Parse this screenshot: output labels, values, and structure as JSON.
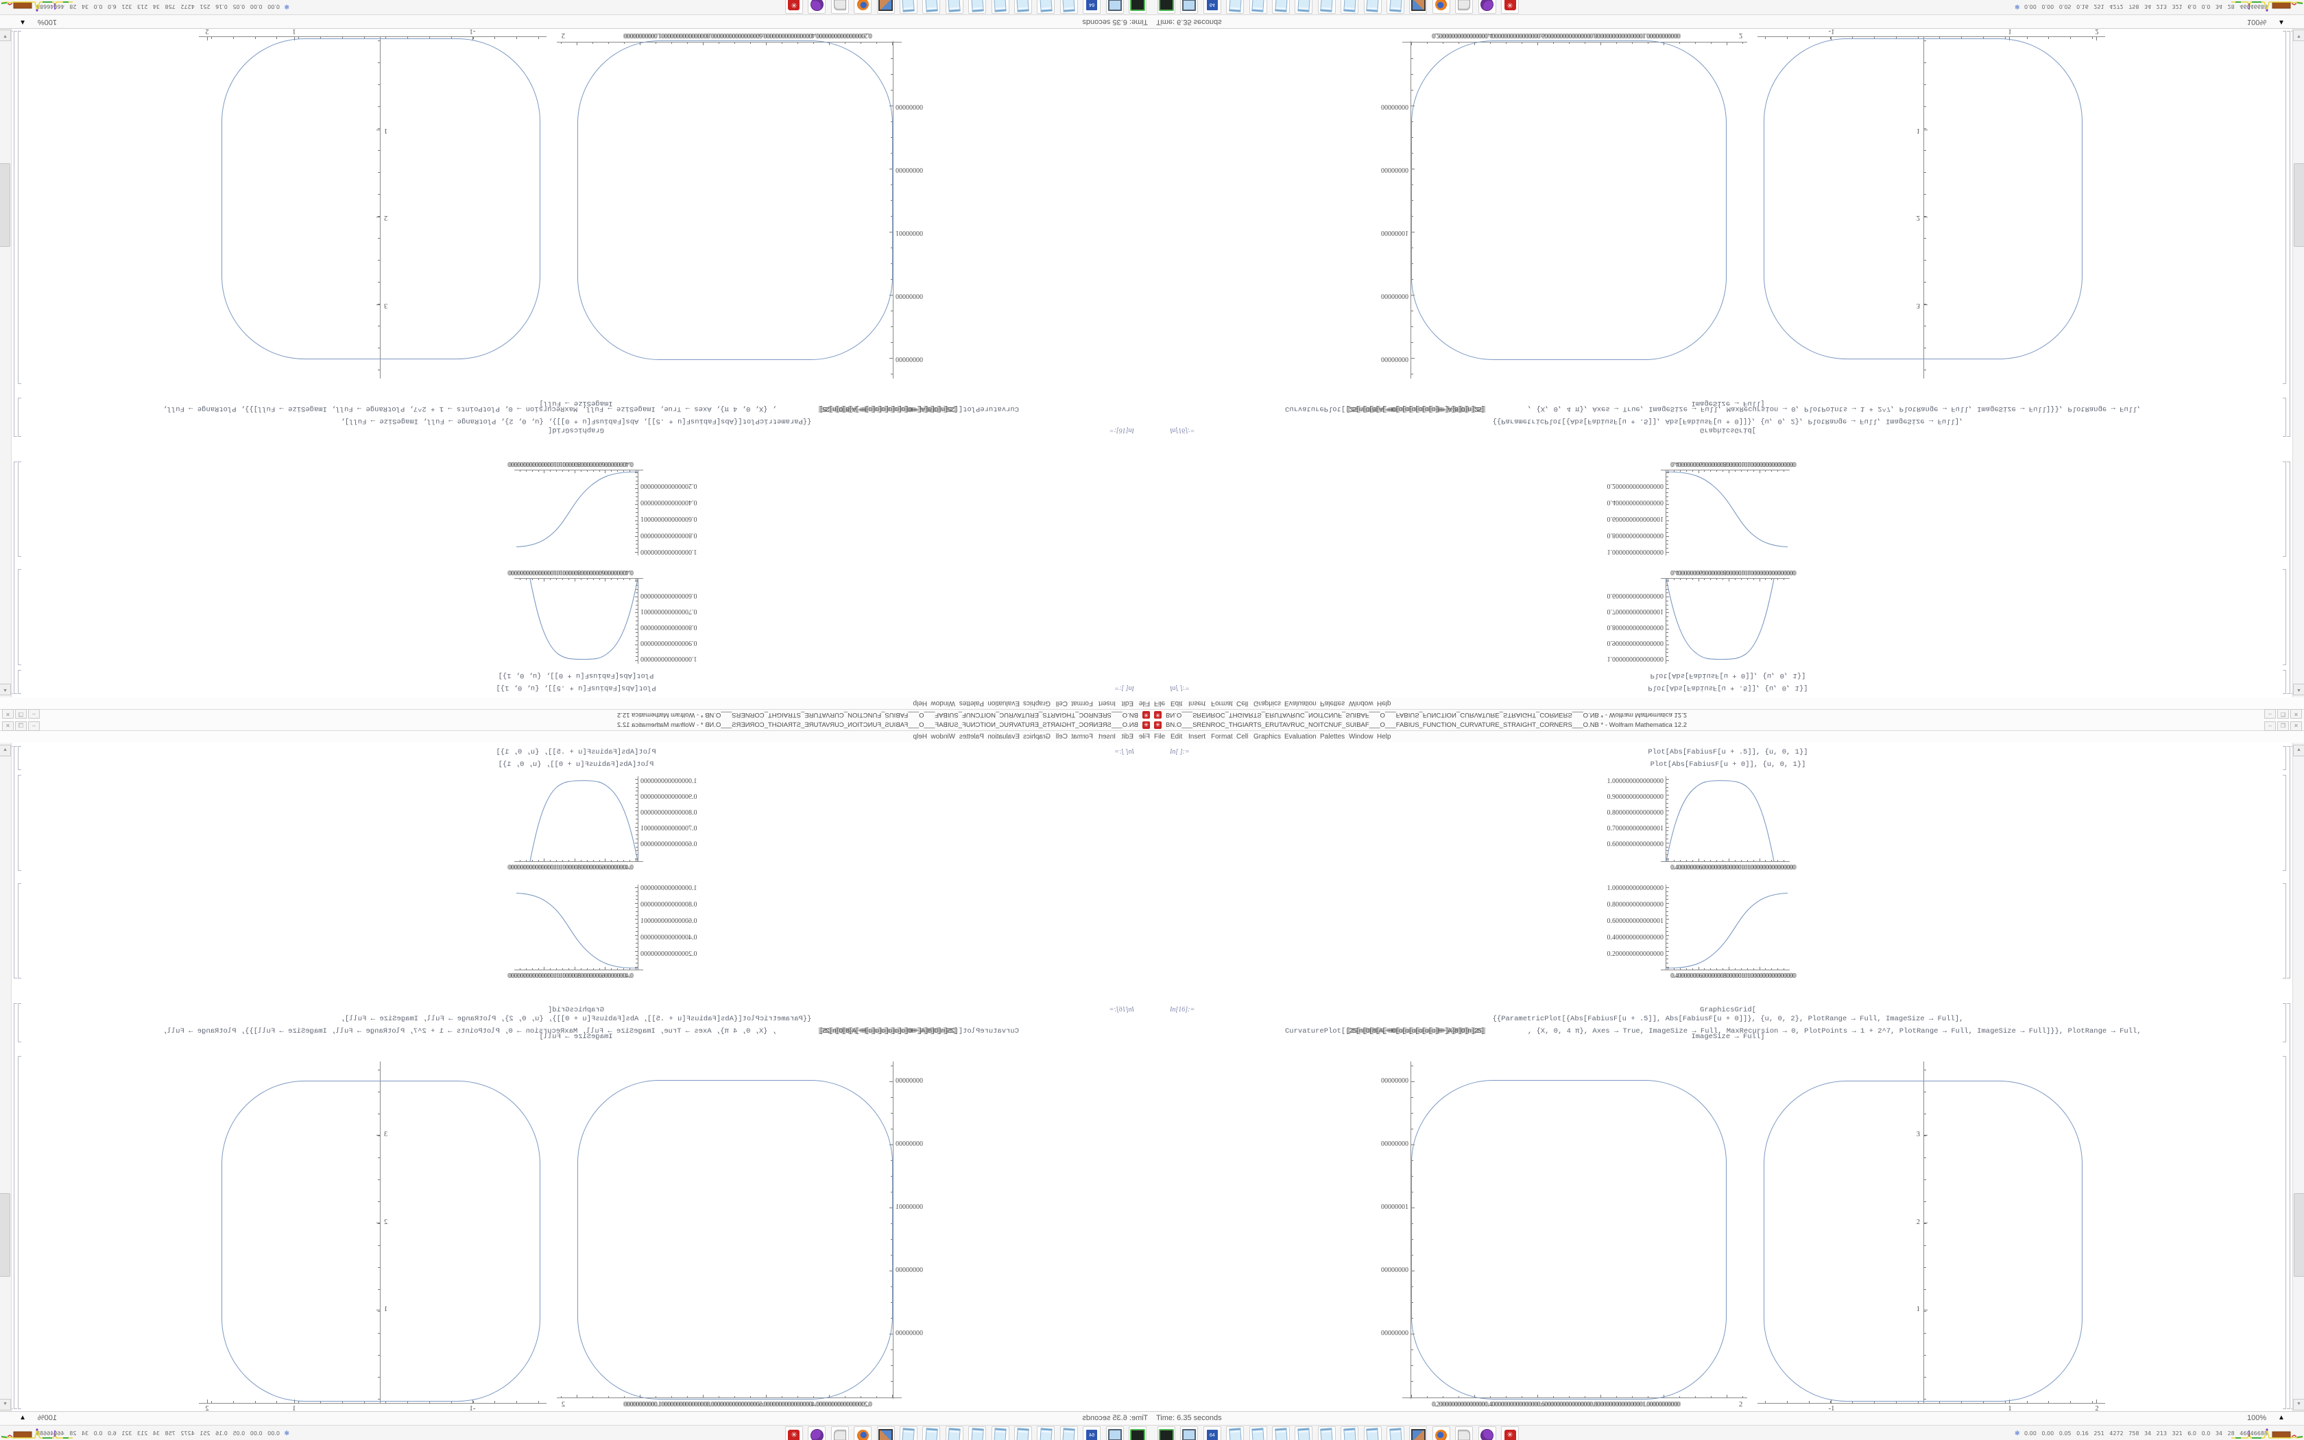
{
  "app": {
    "title": "BN.O___SRENROC_THGIARTS_ERUTAVRUC_NOITCNUF_SUIBAF___O___FABIUS_FUNCTION_CURVATURE_STRAIGHT_CORNERS___O.NB * - Wolfram Mathematica 12.2",
    "window_buttons": [
      "–",
      "❐",
      "✕"
    ]
  },
  "menu": {
    "items": [
      "File",
      "Edit",
      "Insert",
      "Format",
      "Cell",
      "Graphics",
      "Evaluation",
      "Palettes",
      "Window",
      "Help"
    ]
  },
  "notebook": {
    "cell1": {
      "label": "In[ ]:=",
      "lines": [
        "Plot[Abs[FabiusF[u + .5]], {u, 0, 1}]",
        "Plot[Abs[FabiusF[u + 0]], {u, 0, 1}]"
      ]
    },
    "cell2": {
      "label": "In[16]:=",
      "line1": "GraphicsGrid[",
      "line2": "{{ParametricPlot[{Abs[FabiusF[u + .5]], Abs[FabiusF[u + 0]]}, {u, 0, 2}, PlotRange → Full, ImageSize → Full],",
      "line3_head": "CurvaturePlot[",
      "line3_garbled": "[2S[n[O[8[A[+HO[o[o[o[o[o[o]H+]A]8]O]n]2S]",
      "line3_tail": ", {X, 0, 4 π}, Axes → True, ImageSize → Full, MaxRecursion → 0, PlotPoints → 1 + 2^7, PlotRange → Full, ImageSize → Full]}}, PlotRange → Full,",
      "line4": "ImageSize → Full]"
    }
  },
  "plots": {
    "small1": {
      "ylabels": [
        "1.000000000000000",
        "0.900000000000000",
        "0.800000000000000",
        "0.700000000000001",
        "0.600000000000000"
      ],
      "xlabel_overlap": "0.4000000060000000800000101000000000000000"
    },
    "small2": {
      "ylabels": [
        "1.000000000000000",
        "0.800000000000000",
        "0.600000000000001",
        "0.400000000000000",
        "0.200000000000000"
      ],
      "xlabel_overlap": "0.4000000060000000800000101000000000000000"
    },
    "big1": {
      "ylabels": [
        "00000000",
        "00000000",
        "00000001",
        "00000000",
        "00000000"
      ],
      "xlabel_overlap": "0.20000000000000000.40000000000000000.60000000000000000.80000000000000001.00000000000",
      "xlabel_end": "2"
    },
    "big2": {
      "yticks": [
        "3",
        "2",
        "1"
      ],
      "xticks": [
        "-1",
        "1",
        "2"
      ]
    }
  },
  "statusbar": {
    "time": "Time: 6.35 seconds",
    "zoom": "100%",
    "zoom_arrow": "▲"
  },
  "scrollbar": {
    "up": "▲",
    "down": "▼"
  },
  "taskbar": {
    "icons": [
      {
        "name": "drive-backup-icon",
        "kind": "drive-green"
      },
      {
        "name": "display-settings-icon",
        "kind": "display"
      },
      {
        "name": "floppy-64-icon",
        "kind": "floppy",
        "label": "64"
      },
      {
        "name": "notepad-icon",
        "kind": "notepad"
      },
      {
        "name": "notepad-icon",
        "kind": "notepad"
      },
      {
        "name": "notepad-icon",
        "kind": "notepad"
      },
      {
        "name": "notepad-icon",
        "kind": "notepad"
      },
      {
        "name": "notepad-icon",
        "kind": "notepad"
      },
      {
        "name": "notepad-icon",
        "kind": "notepad"
      },
      {
        "name": "notepad-icon",
        "kind": "notepad"
      },
      {
        "name": "notepad-icon",
        "kind": "notepad"
      },
      {
        "name": "screenshot-tool-icon",
        "kind": "screenshot"
      },
      {
        "name": "firefox-icon",
        "kind": "firefox"
      },
      {
        "name": "document-scroll-icon",
        "kind": "scroll"
      },
      {
        "name": "dosbox-icon",
        "kind": "dosbox"
      },
      {
        "name": "mathematica-icon",
        "kind": "redgear",
        "glyph": "✳"
      }
    ],
    "monitor": {
      "glyph": "✻",
      "values": "0.00 0.00 0.05 0.16 251 4272 758 34 213 321 6.0 0.0 34 28 46046688"
    }
  },
  "colors": {
    "curve_blue": "#7b98c2",
    "mathematica_red": "#c92020",
    "monitor_yellow": "#e6d835",
    "monitor_green": "#3faf3f",
    "monitor_brown": "#a0521d"
  },
  "chart_data": [
    {
      "type": "line",
      "title": "Plot[Abs[FabiusF[u + .5]], {u, 0, 1}]",
      "x": [
        0,
        0.1,
        0.2,
        0.3,
        0.4,
        0.5,
        0.6,
        0.7,
        0.8,
        0.9,
        1.0
      ],
      "values": [
        0.55,
        0.68,
        0.85,
        0.96,
        0.995,
        1.0,
        0.995,
        0.96,
        0.85,
        0.68,
        0.55
      ],
      "xlabel": "u",
      "ylabel": "",
      "ylim": [
        0.55,
        1.0
      ],
      "ytick_labels": [
        "1.000000000000000",
        "0.900000000000000",
        "0.800000000000000",
        "0.700000000000001",
        "0.600000000000000"
      ],
      "grid": false,
      "legend": "none"
    },
    {
      "type": "line",
      "title": "Plot[Abs[FabiusF[u + 0]], {u, 0, 1}]",
      "x": [
        0,
        0.1,
        0.2,
        0.3,
        0.4,
        0.5,
        0.6,
        0.7,
        0.8,
        0.9,
        1.0
      ],
      "values": [
        0,
        0.005,
        0.02,
        0.06,
        0.15,
        0.3,
        0.5,
        0.7,
        0.86,
        0.96,
        1.0
      ],
      "xlabel": "u",
      "ylabel": "",
      "ylim": [
        0,
        1.0
      ],
      "ytick_labels": [
        "1.000000000000000",
        "0.800000000000000",
        "0.600000000000001",
        "0.400000000000000",
        "0.200000000000000"
      ],
      "grid": false,
      "legend": "none"
    },
    {
      "type": "scatter",
      "title": "ParametricPlot squircle {Abs[FabiusF[u+.5]], Abs[FabiusF[u+0]]}",
      "shape": "closed rounded-square curve",
      "xlim": [
        0,
        1
      ],
      "ylim": [
        0,
        1
      ],
      "corner_radius_fraction": 0.26,
      "ytick_labels_clipped": [
        "00000000",
        "00000000",
        "00000001",
        "00000000",
        "00000000"
      ],
      "grid": false
    },
    {
      "type": "scatter",
      "title": "CurvaturePlot squircle, {X, 0, 4π}",
      "shape": "closed rounded-square curve",
      "xlim": [
        -1.84,
        1.81
      ],
      "ylim": [
        0,
        3.66
      ],
      "yticks": [
        1,
        2,
        3
      ],
      "xticks": [
        -1,
        1,
        2
      ],
      "grid": false
    }
  ]
}
